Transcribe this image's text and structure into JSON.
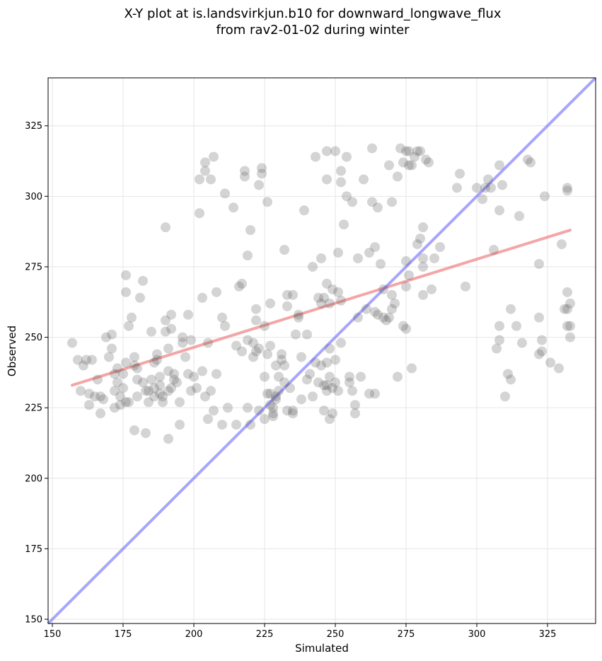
{
  "chart_data": {
    "type": "scatter",
    "title": "X-Y plot at is.landsvirkjun.b10 for downward_longwave_flux",
    "subtitle": "from rav2-01-02 during winter",
    "xlabel": "Simulated",
    "ylabel": "Observed",
    "xlim": [
      148.5,
      342
    ],
    "ylim": [
      148.5,
      342
    ],
    "xticks": [
      150,
      175,
      200,
      225,
      250,
      275,
      300,
      325
    ],
    "yticks": [
      150,
      175,
      200,
      225,
      250,
      275,
      300,
      325
    ],
    "grid": true,
    "colors": {
      "points": "#555555",
      "identity_line": "#6b6bff",
      "fit_line": "#f08080",
      "grid": "#e6e6e6"
    },
    "identity_line": {
      "x": [
        148.5,
        342
      ],
      "y": [
        148.5,
        342
      ]
    },
    "fit_line": {
      "x": [
        157,
        333
      ],
      "y": [
        233,
        288
      ]
    },
    "points": [
      [
        157,
        248
      ],
      [
        159,
        242
      ],
      [
        160,
        231
      ],
      [
        161,
        240
      ],
      [
        162,
        242
      ],
      [
        163,
        230
      ],
      [
        163,
        226
      ],
      [
        164,
        242
      ],
      [
        165,
        229
      ],
      [
        166,
        235
      ],
      [
        167,
        223
      ],
      [
        167,
        229
      ],
      [
        168,
        228
      ],
      [
        169,
        250
      ],
      [
        170,
        243
      ],
      [
        171,
        246
      ],
      [
        171,
        251
      ],
      [
        172,
        237
      ],
      [
        172,
        231
      ],
      [
        172,
        225
      ],
      [
        173,
        234
      ],
      [
        173,
        239
      ],
      [
        174,
        226
      ],
      [
        174,
        229
      ],
      [
        175,
        232
      ],
      [
        175,
        237
      ],
      [
        176,
        227
      ],
      [
        176,
        241
      ],
      [
        176,
        266
      ],
      [
        176,
        272
      ],
      [
        177,
        227
      ],
      [
        177,
        254
      ],
      [
        178,
        257
      ],
      [
        179,
        217
      ],
      [
        179,
        240
      ],
      [
        179,
        243
      ],
      [
        180,
        235
      ],
      [
        180,
        229
      ],
      [
        180,
        239
      ],
      [
        181,
        264
      ],
      [
        182,
        270
      ],
      [
        182,
        234
      ],
      [
        183,
        231
      ],
      [
        183,
        216
      ],
      [
        184,
        231
      ],
      [
        184,
        227
      ],
      [
        185,
        235
      ],
      [
        185,
        252
      ],
      [
        186,
        229
      ],
      [
        186,
        241
      ],
      [
        186,
        232
      ],
      [
        187,
        244
      ],
      [
        187,
        242
      ],
      [
        188,
        233
      ],
      [
        188,
        236
      ],
      [
        188,
        230
      ],
      [
        189,
        229
      ],
      [
        189,
        227
      ],
      [
        190,
        252
      ],
      [
        190,
        256
      ],
      [
        190,
        289
      ],
      [
        191,
        214
      ],
      [
        191,
        238
      ],
      [
        191,
        246
      ],
      [
        191,
        231
      ],
      [
        192,
        258
      ],
      [
        192,
        253
      ],
      [
        192,
        232
      ],
      [
        193,
        235
      ],
      [
        193,
        237
      ],
      [
        194,
        234
      ],
      [
        195,
        227
      ],
      [
        195,
        219
      ],
      [
        196,
        248
      ],
      [
        196,
        250
      ],
      [
        197,
        243
      ],
      [
        198,
        237
      ],
      [
        198,
        258
      ],
      [
        199,
        249
      ],
      [
        199,
        231
      ],
      [
        200,
        236
      ],
      [
        201,
        232
      ],
      [
        202,
        306
      ],
      [
        202,
        294
      ],
      [
        203,
        264
      ],
      [
        203,
        238
      ],
      [
        204,
        312
      ],
      [
        204,
        309
      ],
      [
        204,
        229
      ],
      [
        205,
        248
      ],
      [
        205,
        221
      ],
      [
        206,
        306
      ],
      [
        206,
        231
      ],
      [
        207,
        314
      ],
      [
        207,
        224
      ],
      [
        208,
        237
      ],
      [
        208,
        266
      ],
      [
        210,
        219
      ],
      [
        210,
        257
      ],
      [
        211,
        254
      ],
      [
        211,
        301
      ],
      [
        212,
        225
      ],
      [
        214,
        296
      ],
      [
        215,
        219
      ],
      [
        215,
        247
      ],
      [
        216,
        268
      ],
      [
        217,
        269
      ],
      [
        217,
        245
      ],
      [
        218,
        307
      ],
      [
        218,
        309
      ],
      [
        219,
        225
      ],
      [
        219,
        279
      ],
      [
        219,
        249
      ],
      [
        220,
        288
      ],
      [
        220,
        219
      ],
      [
        221,
        248
      ],
      [
        221,
        243
      ],
      [
        222,
        256
      ],
      [
        222,
        260
      ],
      [
        222,
        245
      ],
      [
        223,
        224
      ],
      [
        223,
        246
      ],
      [
        223,
        304
      ],
      [
        224,
        310
      ],
      [
        224,
        308
      ],
      [
        225,
        221
      ],
      [
        225,
        254
      ],
      [
        225,
        236
      ],
      [
        226,
        244
      ],
      [
        226,
        230
      ],
      [
        226,
        298
      ],
      [
        227,
        262
      ],
      [
        227,
        247
      ],
      [
        227,
        226
      ],
      [
        227,
        230
      ],
      [
        228,
        225
      ],
      [
        228,
        222
      ],
      [
        228,
        223
      ],
      [
        229,
        228
      ],
      [
        229,
        229
      ],
      [
        229,
        240
      ],
      [
        230,
        231
      ],
      [
        230,
        236
      ],
      [
        231,
        244
      ],
      [
        231,
        242
      ],
      [
        232,
        234
      ],
      [
        232,
        281
      ],
      [
        232,
        240
      ],
      [
        233,
        224
      ],
      [
        233,
        265
      ],
      [
        233,
        261
      ],
      [
        234,
        232
      ],
      [
        235,
        224
      ],
      [
        235,
        223
      ],
      [
        235,
        265
      ],
      [
        236,
        251
      ],
      [
        237,
        257
      ],
      [
        237,
        258
      ],
      [
        238,
        228
      ],
      [
        238,
        243
      ],
      [
        239,
        295
      ],
      [
        240,
        235
      ],
      [
        240,
        251
      ],
      [
        241,
        237
      ],
      [
        242,
        229
      ],
      [
        242,
        275
      ],
      [
        243,
        314
      ],
      [
        243,
        241
      ],
      [
        244,
        264
      ],
      [
        244,
        234
      ],
      [
        245,
        278
      ],
      [
        245,
        262
      ],
      [
        245,
        240
      ],
      [
        246,
        264
      ],
      [
        246,
        233
      ],
      [
        246,
        224
      ],
      [
        247,
        231
      ],
      [
        247,
        306
      ],
      [
        247,
        316
      ],
      [
        247,
        269
      ],
      [
        247,
        241
      ],
      [
        247,
        233
      ],
      [
        248,
        262
      ],
      [
        248,
        246
      ],
      [
        248,
        236
      ],
      [
        248,
        221
      ],
      [
        249,
        223
      ],
      [
        249,
        232
      ],
      [
        249,
        267
      ],
      [
        250,
        234
      ],
      [
        250,
        316
      ],
      [
        250,
        242
      ],
      [
        251,
        231
      ],
      [
        251,
        266
      ],
      [
        251,
        280
      ],
      [
        252,
        248
      ],
      [
        252,
        263
      ],
      [
        252,
        305
      ],
      [
        252,
        309
      ],
      [
        253,
        290
      ],
      [
        254,
        300
      ],
      [
        254,
        314
      ],
      [
        255,
        234
      ],
      [
        255,
        236
      ],
      [
        256,
        231
      ],
      [
        256,
        298
      ],
      [
        257,
        223
      ],
      [
        257,
        226
      ],
      [
        258,
        278
      ],
      [
        258,
        257
      ],
      [
        259,
        236
      ],
      [
        260,
        306
      ],
      [
        261,
        260
      ],
      [
        262,
        230
      ],
      [
        262,
        280
      ],
      [
        263,
        298
      ],
      [
        263,
        317
      ],
      [
        264,
        230
      ],
      [
        264,
        259
      ],
      [
        264,
        282
      ],
      [
        265,
        296
      ],
      [
        265,
        258
      ],
      [
        266,
        276
      ],
      [
        267,
        257
      ],
      [
        267,
        267
      ],
      [
        268,
        256
      ],
      [
        269,
        257
      ],
      [
        269,
        311
      ],
      [
        270,
        298
      ],
      [
        270,
        260
      ],
      [
        270,
        265
      ],
      [
        271,
        262
      ],
      [
        272,
        236
      ],
      [
        272,
        307
      ],
      [
        273,
        317
      ],
      [
        274,
        312
      ],
      [
        274,
        254
      ],
      [
        275,
        316
      ],
      [
        275,
        253
      ],
      [
        275,
        268
      ],
      [
        275,
        277
      ],
      [
        276,
        316
      ],
      [
        276,
        311
      ],
      [
        276,
        272
      ],
      [
        277,
        239
      ],
      [
        277,
        311
      ],
      [
        278,
        314
      ],
      [
        279,
        316
      ],
      [
        279,
        283
      ],
      [
        280,
        316
      ],
      [
        280,
        285
      ],
      [
        281,
        275
      ],
      [
        281,
        278
      ],
      [
        281,
        265
      ],
      [
        281,
        289
      ],
      [
        282,
        313
      ],
      [
        283,
        312
      ],
      [
        284,
        267
      ],
      [
        285,
        278
      ],
      [
        287,
        282
      ],
      [
        293,
        303
      ],
      [
        294,
        308
      ],
      [
        296,
        268
      ],
      [
        300,
        303
      ],
      [
        302,
        299
      ],
      [
        303,
        303
      ],
      [
        304,
        306
      ],
      [
        305,
        303
      ],
      [
        306,
        281
      ],
      [
        307,
        246
      ],
      [
        308,
        311
      ],
      [
        308,
        254
      ],
      [
        308,
        249
      ],
      [
        308,
        295
      ],
      [
        309,
        304
      ],
      [
        310,
        229
      ],
      [
        311,
        237
      ],
      [
        312,
        235
      ],
      [
        312,
        260
      ],
      [
        314,
        254
      ],
      [
        315,
        293
      ],
      [
        316,
        248
      ],
      [
        318,
        313
      ],
      [
        319,
        312
      ],
      [
        322,
        276
      ],
      [
        322,
        244
      ],
      [
        323,
        245
      ],
      [
        323,
        249
      ],
      [
        324,
        300
      ],
      [
        326,
        241
      ],
      [
        329,
        239
      ],
      [
        330,
        283
      ],
      [
        331,
        260
      ],
      [
        332,
        266
      ],
      [
        332,
        302
      ],
      [
        332,
        303
      ],
      [
        333,
        254
      ],
      [
        333,
        250
      ],
      [
        333,
        262
      ],
      [
        332,
        254
      ],
      [
        322,
        257
      ],
      [
        332,
        260
      ]
    ]
  }
}
